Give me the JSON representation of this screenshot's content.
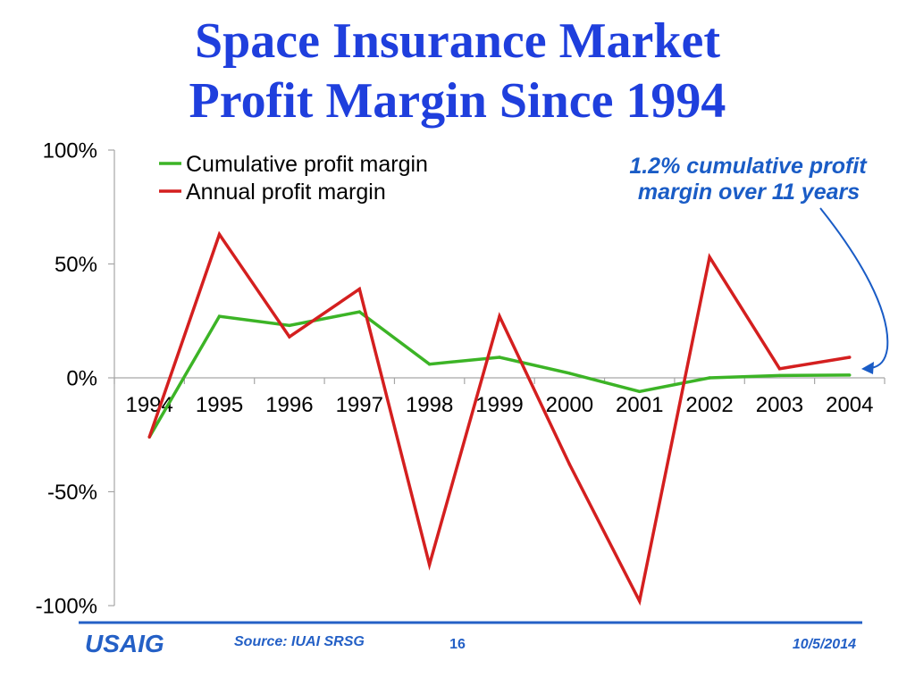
{
  "chart_data": {
    "type": "line",
    "title": "Space Insurance Market",
    "subtitle": "Profit Margin Since 1994",
    "categories": [
      "1994",
      "1995",
      "1996",
      "1997",
      "1998",
      "1999",
      "2000",
      "2001",
      "2002",
      "2003",
      "2004"
    ],
    "series": [
      {
        "name": "Cumulative profit margin",
        "color": "#3cb426",
        "values": [
          -26,
          27,
          23,
          29,
          6,
          9,
          2,
          -6,
          0,
          1,
          1.2
        ]
      },
      {
        "name": "Annual profit margin",
        "color": "#d41f1f",
        "values": [
          -26,
          63,
          18,
          39,
          -82,
          27,
          -38,
          -98,
          53,
          4,
          9
        ]
      }
    ],
    "ylim": [
      -100,
      100
    ],
    "yticks": [
      100,
      50,
      0,
      -50,
      -100
    ],
    "ytick_labels": [
      "100%",
      "50%",
      "0%",
      "-50%",
      "-100%"
    ],
    "grid": false,
    "legend": "top-left",
    "annotation": {
      "lines": [
        "1.2% cumulative profit",
        "margin over 11 years"
      ],
      "color": "#1a5cc6"
    }
  },
  "theme": {
    "title_color": "#1f3fdd",
    "footer_color": "#2460c6"
  },
  "footer": {
    "logo_text": "USAIG",
    "source": "Source: IUAI SRSG",
    "page_number": "16",
    "date": "10/5/2014"
  }
}
